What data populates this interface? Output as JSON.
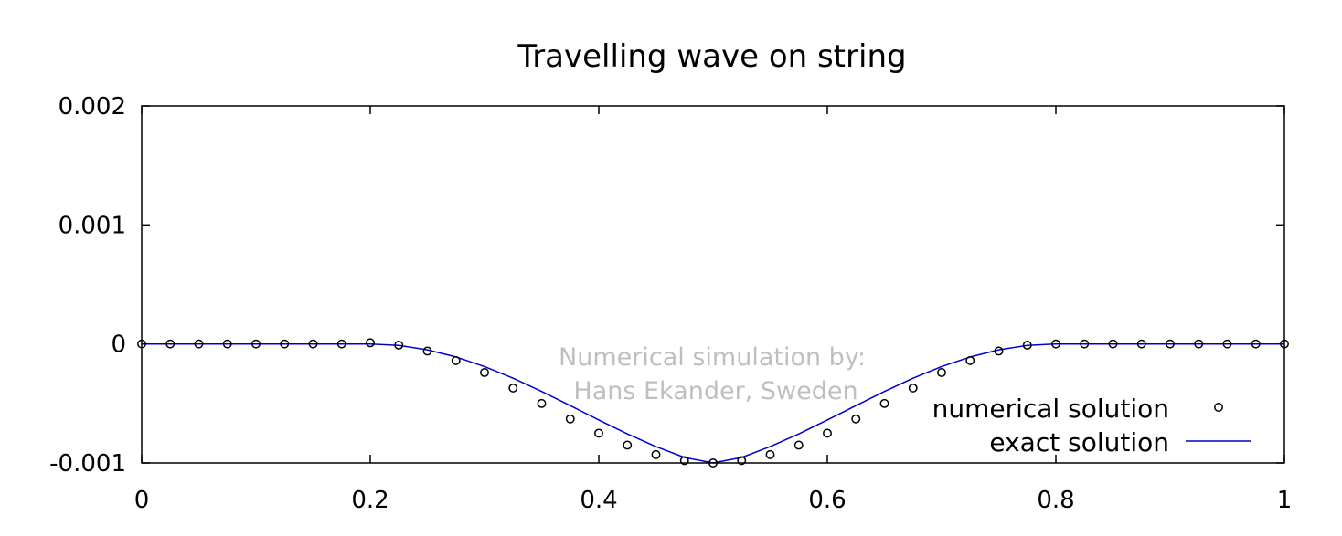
{
  "chart_data": {
    "type": "line",
    "title": "Travelling wave on string",
    "xlabel": "",
    "ylabel": "",
    "xlim": [
      0,
      1
    ],
    "ylim": [
      -0.001,
      0.002
    ],
    "x_ticks": [
      "0",
      "0.2",
      "0.4",
      "0.6",
      "0.8",
      "1"
    ],
    "y_ticks": [
      "0.002",
      "0.001",
      "0",
      "-0.001"
    ],
    "grid": false,
    "legend_position": "bottom-right",
    "annotation": [
      "Numerical simulation by:",
      "Hans Ekander, Sweden"
    ],
    "series": [
      {
        "name": "numerical solution",
        "marker": "open-circle",
        "color": "#000000",
        "x": [
          0,
          0.025,
          0.05,
          0.075,
          0.1,
          0.125,
          0.15,
          0.175,
          0.2,
          0.225,
          0.25,
          0.275,
          0.3,
          0.325,
          0.35,
          0.375,
          0.4,
          0.425,
          0.45,
          0.475,
          0.5,
          0.525,
          0.55,
          0.575,
          0.6,
          0.625,
          0.65,
          0.675,
          0.7,
          0.725,
          0.75,
          0.775,
          0.8,
          0.825,
          0.85,
          0.875,
          0.9,
          0.925,
          0.95,
          0.975,
          1
        ],
        "y": [
          0,
          0,
          0,
          0,
          0,
          0,
          0,
          0,
          1e-05,
          -1e-05,
          -6e-05,
          -0.00014,
          -0.00024,
          -0.00037,
          -0.0005,
          -0.00063,
          -0.00075,
          -0.00085,
          -0.00093,
          -0.00098,
          -0.001,
          -0.00098,
          -0.00093,
          -0.00085,
          -0.00075,
          -0.00063,
          -0.0005,
          -0.00037,
          -0.00024,
          -0.00014,
          -6e-05,
          -1e-05,
          0,
          0,
          0,
          0,
          0,
          0,
          0,
          0,
          0
        ]
      },
      {
        "name": "exact solution",
        "style": "line",
        "color": "#0000cc",
        "x": [
          0,
          0.2,
          0.225,
          0.25,
          0.275,
          0.3,
          0.325,
          0.35,
          0.375,
          0.4,
          0.425,
          0.45,
          0.475,
          0.5,
          0.525,
          0.55,
          0.575,
          0.6,
          0.625,
          0.65,
          0.675,
          0.7,
          0.725,
          0.75,
          0.775,
          0.8,
          1
        ],
        "y": [
          0,
          0,
          -1.2e-05,
          -4.9e-05,
          -0.000109,
          -0.00019,
          -0.000288,
          -0.000399,
          -0.000518,
          -0.000639,
          -0.000756,
          -0.000863,
          -0.000954,
          -0.001,
          -0.000954,
          -0.000863,
          -0.000756,
          -0.000639,
          -0.000518,
          -0.000399,
          -0.000288,
          -0.00019,
          -0.000109,
          -4.9e-05,
          -1.2e-05,
          0,
          0
        ]
      }
    ]
  }
}
